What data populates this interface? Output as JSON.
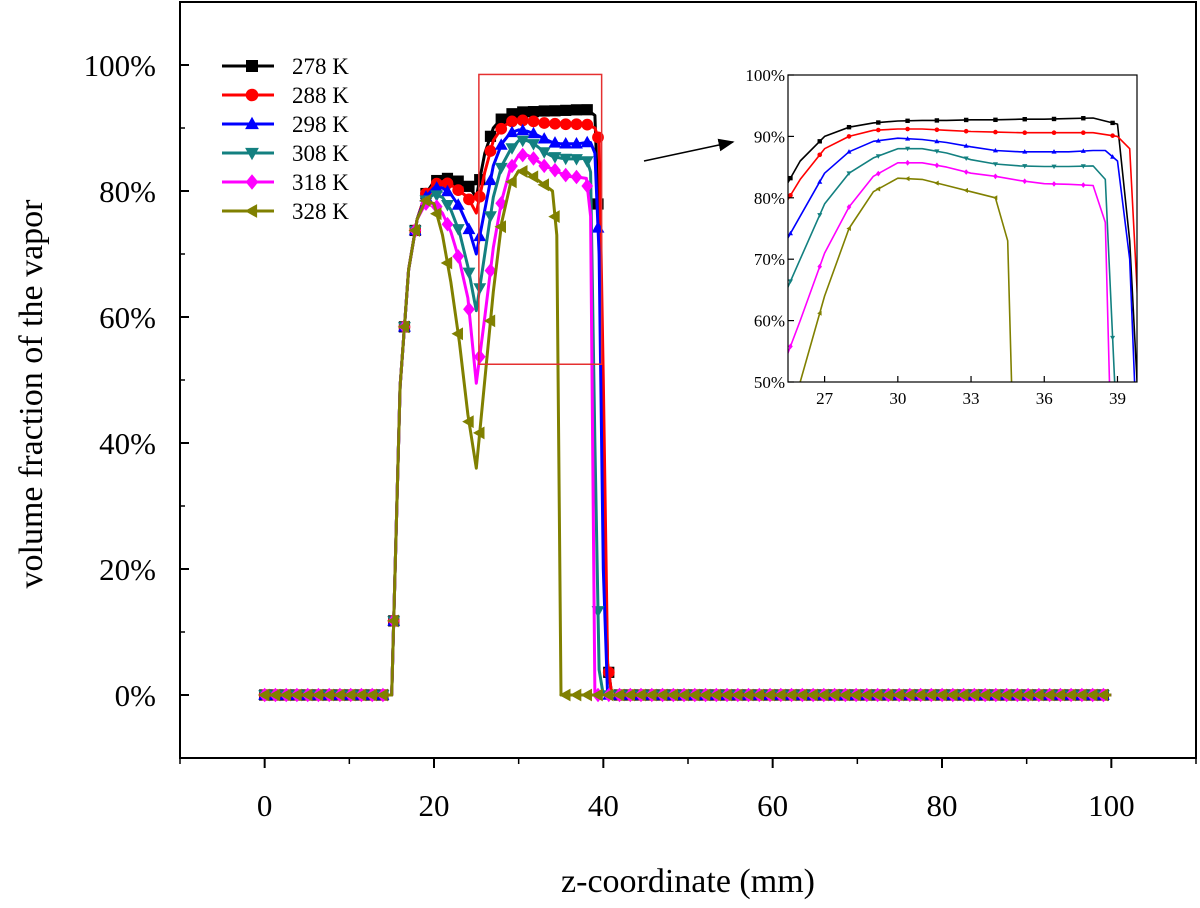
{
  "chart_data": [
    {
      "type": "line",
      "xlabel": "z-coordinate (mm)",
      "ylabel": "volume fraction of the vapor",
      "xlim": [
        -10,
        110
      ],
      "ylim": [
        -0.1,
        1.1
      ],
      "xticks": [
        0,
        20,
        40,
        60,
        80,
        100
      ],
      "xtick_labels": [
        "0",
        "20",
        "40",
        "60",
        "80",
        "100"
      ],
      "yticks": [
        0,
        0.2,
        0.4,
        0.6,
        0.8,
        1.0
      ],
      "ytick_labels": [
        "0%",
        "20%",
        "40%",
        "60%",
        "80%",
        "100%"
      ],
      "grid": false,
      "legend_position": "top-left",
      "series": [
        {
          "name": "278 K",
          "color": "#000000",
          "marker": "square",
          "x": [
            0,
            15,
            16,
            17,
            18,
            19,
            20,
            21,
            22,
            23,
            24,
            25,
            26,
            27,
            28,
            29,
            30,
            31,
            32,
            33,
            34,
            35,
            36,
            37,
            38,
            39,
            39.5,
            40,
            40.5,
            41,
            100
          ],
          "y": [
            0,
            0,
            0.49,
            0.675,
            0.755,
            0.795,
            0.815,
            0.82,
            0.82,
            0.815,
            0.81,
            0.79,
            0.86,
            0.9,
            0.915,
            0.922,
            0.925,
            0.926,
            0.926,
            0.927,
            0.927,
            0.928,
            0.928,
            0.929,
            0.93,
            0.92,
            0.73,
            0.35,
            0.05,
            0,
            0
          ]
        },
        {
          "name": "288 K",
          "color": "#ff0000",
          "marker": "circle",
          "x": [
            0,
            15,
            16,
            17,
            18,
            19,
            20,
            21,
            22,
            23,
            24,
            25,
            26,
            27,
            28,
            29,
            30,
            31,
            32,
            33,
            34,
            35,
            36,
            37,
            38,
            39,
            39.5,
            40,
            40.5,
            41,
            100
          ],
          "y": [
            0,
            0,
            0.49,
            0.675,
            0.755,
            0.795,
            0.81,
            0.815,
            0.81,
            0.8,
            0.79,
            0.765,
            0.83,
            0.88,
            0.9,
            0.91,
            0.912,
            0.912,
            0.91,
            0.908,
            0.907,
            0.906,
            0.906,
            0.906,
            0.906,
            0.9,
            0.88,
            0.5,
            0.05,
            0,
            0
          ]
        },
        {
          "name": "298 K",
          "color": "#0000ff",
          "marker": "triangle-up",
          "x": [
            0,
            15,
            16,
            17,
            18,
            19,
            20,
            21,
            22,
            23,
            24,
            25,
            26,
            27,
            28,
            29,
            30,
            31,
            32,
            33,
            34,
            35,
            36,
            37,
            38,
            38.5,
            39,
            39.5,
            40,
            40.5,
            100
          ],
          "y": [
            0,
            0,
            0.49,
            0.675,
            0.755,
            0.79,
            0.805,
            0.805,
            0.795,
            0.775,
            0.745,
            0.7,
            0.77,
            0.84,
            0.875,
            0.892,
            0.897,
            0.895,
            0.89,
            0.883,
            0.877,
            0.875,
            0.875,
            0.875,
            0.877,
            0.877,
            0.86,
            0.7,
            0.2,
            0,
            0
          ]
        },
        {
          "name": "308 K",
          "color": "#138080",
          "marker": "triangle-down",
          "x": [
            0,
            15,
            16,
            17,
            18,
            19,
            20,
            21,
            22,
            23,
            24,
            25,
            26,
            27,
            28,
            29,
            30,
            31,
            32,
            33,
            34,
            35,
            36,
            37,
            38,
            38.5,
            39,
            39.5,
            40,
            100
          ],
          "y": [
            0,
            0,
            0.49,
            0.675,
            0.755,
            0.785,
            0.795,
            0.79,
            0.77,
            0.735,
            0.68,
            0.61,
            0.7,
            0.79,
            0.84,
            0.865,
            0.88,
            0.88,
            0.873,
            0.862,
            0.855,
            0.852,
            0.851,
            0.851,
            0.852,
            0.83,
            0.4,
            0.04,
            0,
            0
          ]
        },
        {
          "name": "318 K",
          "color": "#ff00ff",
          "marker": "diamond",
          "x": [
            0,
            15,
            16,
            17,
            18,
            19,
            20,
            21,
            22,
            23,
            24,
            25,
            26,
            27,
            28,
            29,
            30,
            31,
            32,
            33,
            34,
            35,
            36,
            37,
            38,
            38.5,
            39,
            100
          ],
          "y": [
            0,
            0,
            0.49,
            0.675,
            0.755,
            0.78,
            0.78,
            0.765,
            0.735,
            0.69,
            0.63,
            0.495,
            0.6,
            0.71,
            0.785,
            0.835,
            0.857,
            0.857,
            0.85,
            0.84,
            0.835,
            0.828,
            0.823,
            0.822,
            0.82,
            0.76,
            0,
            0
          ]
        },
        {
          "name": "328 K",
          "color": "#808000",
          "marker": "triangle-left",
          "x": [
            0,
            15,
            16,
            17,
            18,
            19,
            20,
            21,
            22,
            23,
            24,
            25,
            26,
            27,
            28,
            29,
            30,
            31,
            32,
            33,
            34,
            34.5,
            35,
            100
          ],
          "y": [
            0,
            0,
            0.49,
            0.675,
            0.755,
            0.785,
            0.78,
            0.73,
            0.655,
            0.56,
            0.445,
            0.36,
            0.5,
            0.64,
            0.75,
            0.81,
            0.832,
            0.83,
            0.82,
            0.81,
            0.8,
            0.73,
            0,
            0
          ]
        }
      ]
    },
    {
      "type": "line",
      "title": "",
      "xlim": [
        25.5,
        39.8
      ],
      "ylim": [
        0.5,
        1.0
      ],
      "xticks": [
        27,
        30,
        33,
        36,
        39
      ],
      "xtick_labels": [
        "27",
        "30",
        "33",
        "36",
        "39"
      ],
      "yticks": [
        0.5,
        0.6,
        0.7,
        0.8,
        0.9,
        1.0
      ],
      "ytick_labels": [
        "50%",
        "60%",
        "70%",
        "80%",
        "90%",
        "100%"
      ],
      "grid": false,
      "series_ref": "zoom of main chart, z from 25.5 to 39.8 mm"
    }
  ]
}
